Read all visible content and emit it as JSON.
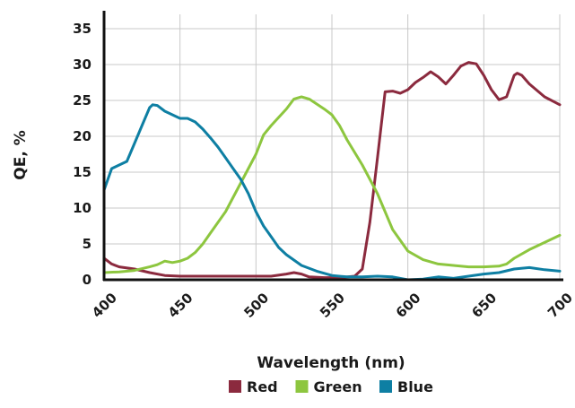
{
  "chart_data": {
    "type": "line",
    "title": "",
    "xlabel": "Wavelength (nm)",
    "ylabel": "QE, %",
    "xlim": [
      400,
      700
    ],
    "ylim": [
      0,
      37
    ],
    "x_ticks": [
      400,
      450,
      500,
      550,
      600,
      650,
      700
    ],
    "y_ticks": [
      0,
      5,
      10,
      15,
      20,
      25,
      30,
      35
    ],
    "grid": true,
    "legend_position": "bottom-center",
    "series": [
      {
        "name": "Red",
        "color": "#8b2a3e",
        "points": [
          [
            400,
            3.0
          ],
          [
            405,
            2.2
          ],
          [
            410,
            1.8
          ],
          [
            420,
            1.5
          ],
          [
            430,
            1.0
          ],
          [
            440,
            0.6
          ],
          [
            450,
            0.5
          ],
          [
            460,
            0.5
          ],
          [
            480,
            0.5
          ],
          [
            500,
            0.5
          ],
          [
            510,
            0.5
          ],
          [
            520,
            0.8
          ],
          [
            525,
            1.0
          ],
          [
            530,
            0.8
          ],
          [
            535,
            0.4
          ],
          [
            545,
            0.3
          ],
          [
            555,
            0.3
          ],
          [
            565,
            0.5
          ],
          [
            570,
            1.5
          ],
          [
            575,
            8
          ],
          [
            580,
            17
          ],
          [
            585,
            26.2
          ],
          [
            590,
            26.3
          ],
          [
            595,
            26.0
          ],
          [
            600,
            26.5
          ],
          [
            605,
            27.5
          ],
          [
            610,
            28.2
          ],
          [
            615,
            29.0
          ],
          [
            620,
            28.3
          ],
          [
            625,
            27.3
          ],
          [
            630,
            28.5
          ],
          [
            635,
            29.8
          ],
          [
            640,
            30.3
          ],
          [
            645,
            30.1
          ],
          [
            650,
            28.5
          ],
          [
            655,
            26.5
          ],
          [
            660,
            25.1
          ],
          [
            665,
            25.5
          ],
          [
            670,
            28.5
          ],
          [
            672,
            28.8
          ],
          [
            675,
            28.5
          ],
          [
            680,
            27.3
          ],
          [
            690,
            25.5
          ],
          [
            700,
            24.4
          ]
        ]
      },
      {
        "name": "Green",
        "color": "#8dc63f",
        "points": [
          [
            400,
            1.0
          ],
          [
            410,
            1.1
          ],
          [
            420,
            1.3
          ],
          [
            430,
            1.8
          ],
          [
            435,
            2.1
          ],
          [
            440,
            2.6
          ],
          [
            445,
            2.4
          ],
          [
            450,
            2.6
          ],
          [
            455,
            3.0
          ],
          [
            460,
            3.8
          ],
          [
            465,
            5.0
          ],
          [
            470,
            6.5
          ],
          [
            480,
            9.5
          ],
          [
            490,
            13.5
          ],
          [
            500,
            17.5
          ],
          [
            505,
            20.2
          ],
          [
            510,
            21.5
          ],
          [
            520,
            23.8
          ],
          [
            525,
            25.2
          ],
          [
            530,
            25.5
          ],
          [
            535,
            25.2
          ],
          [
            540,
            24.5
          ],
          [
            545,
            23.8
          ],
          [
            550,
            23.0
          ],
          [
            555,
            21.5
          ],
          [
            560,
            19.5
          ],
          [
            570,
            16.0
          ],
          [
            580,
            12.0
          ],
          [
            590,
            7.0
          ],
          [
            600,
            4.0
          ],
          [
            610,
            2.8
          ],
          [
            620,
            2.2
          ],
          [
            630,
            2.0
          ],
          [
            640,
            1.8
          ],
          [
            650,
            1.8
          ],
          [
            660,
            1.9
          ],
          [
            665,
            2.2
          ],
          [
            670,
            3.0
          ],
          [
            680,
            4.2
          ],
          [
            690,
            5.2
          ],
          [
            700,
            6.2
          ]
        ]
      },
      {
        "name": "Blue",
        "color": "#0e7fa3",
        "points": [
          [
            400,
            12.5
          ],
          [
            405,
            15.5
          ],
          [
            410,
            16.0
          ],
          [
            415,
            16.5
          ],
          [
            420,
            19.0
          ],
          [
            425,
            21.5
          ],
          [
            430,
            24.0
          ],
          [
            432,
            24.4
          ],
          [
            435,
            24.3
          ],
          [
            440,
            23.5
          ],
          [
            445,
            23.0
          ],
          [
            450,
            22.5
          ],
          [
            455,
            22.5
          ],
          [
            460,
            22.0
          ],
          [
            465,
            21.0
          ],
          [
            470,
            19.8
          ],
          [
            475,
            18.5
          ],
          [
            480,
            17.0
          ],
          [
            485,
            15.5
          ],
          [
            490,
            14.0
          ],
          [
            495,
            12.0
          ],
          [
            500,
            9.5
          ],
          [
            505,
            7.5
          ],
          [
            510,
            6.0
          ],
          [
            515,
            4.5
          ],
          [
            520,
            3.5
          ],
          [
            530,
            2.0
          ],
          [
            540,
            1.2
          ],
          [
            550,
            0.6
          ],
          [
            560,
            0.4
          ],
          [
            570,
            0.4
          ],
          [
            580,
            0.5
          ],
          [
            590,
            0.4
          ],
          [
            600,
            0.0
          ],
          [
            610,
            0.1
          ],
          [
            620,
            0.4
          ],
          [
            630,
            0.2
          ],
          [
            640,
            0.5
          ],
          [
            650,
            0.8
          ],
          [
            660,
            1.0
          ],
          [
            670,
            1.5
          ],
          [
            680,
            1.7
          ],
          [
            690,
            1.4
          ],
          [
            700,
            1.2
          ]
        ]
      }
    ]
  }
}
